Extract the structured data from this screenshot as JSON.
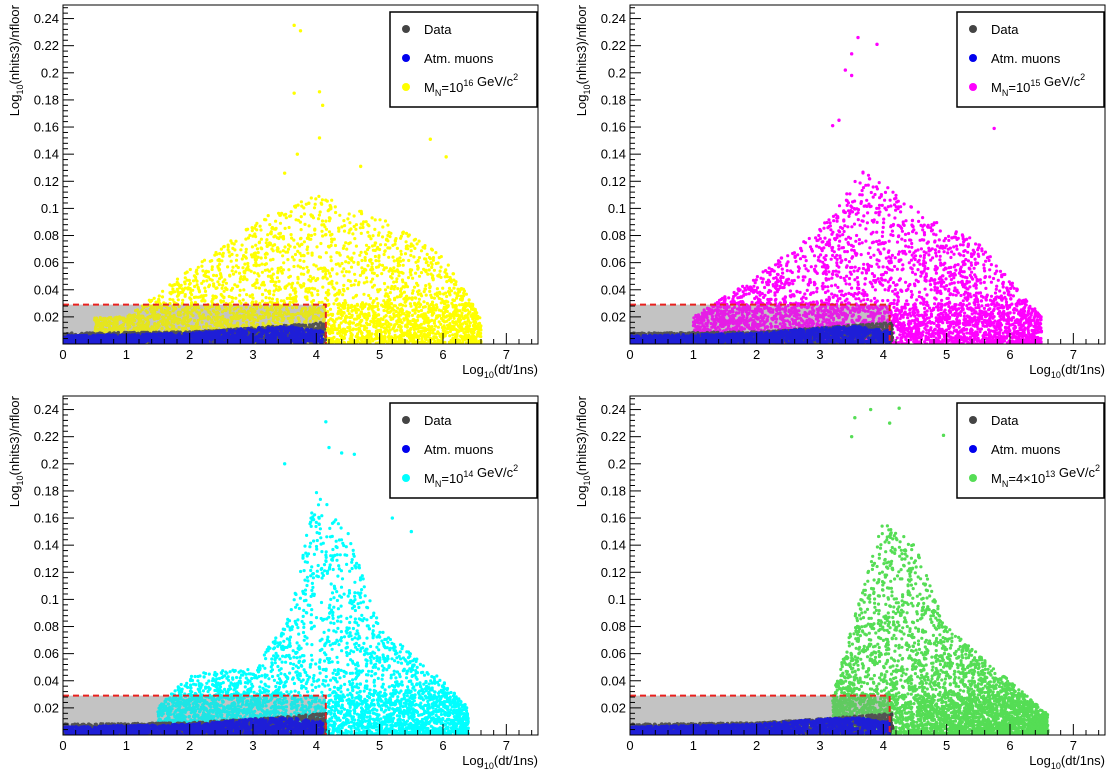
{
  "chart_data": [
    {
      "type": "scatter",
      "xlabel": "Log10(dt/1ns)",
      "ylabel": "Log10(nhits3)/nfloor",
      "xlim": [
        0,
        7.5
      ],
      "ylim": [
        0,
        0.25
      ],
      "xticks": [
        0,
        1,
        2,
        3,
        4,
        5,
        6,
        7
      ],
      "yticks": [
        0.02,
        0.04,
        0.06,
        0.08,
        0.1,
        0.12,
        0.14,
        0.16,
        0.18,
        0.2,
        0.22,
        0.24
      ],
      "xtick_labels": [
        "0",
        "1",
        "2",
        "3",
        "4",
        "5",
        "6",
        "7"
      ],
      "ytick_labels": [
        "0.02",
        "0.04",
        "0.06",
        "0.08",
        "0.1",
        "0.12",
        "0.14",
        "0.16",
        "0.18",
        "0.2",
        "0.22",
        "0.24"
      ],
      "cut_box": {
        "x": [
          0,
          4.15
        ],
        "y": [
          0,
          0.029
        ]
      },
      "legend_position": "top-right",
      "legend": [
        {
          "label": "Data",
          "color": "#444444"
        },
        {
          "label": "Atm. muons",
          "color": "#0000ee"
        },
        {
          "label": "M_N=10^16 GeV/c^2",
          "color": "#ffff00"
        }
      ],
      "series": [
        {
          "name": "Data",
          "color": "#444444",
          "region": {
            "x": [
              0,
              4.15
            ],
            "y_max_at_x": [
              [
                0,
                0.008
              ],
              [
                2,
                0.009
              ],
              [
                3,
                0.012
              ],
              [
                3.6,
                0.014
              ],
              [
                4.15,
                0.016
              ]
            ]
          }
        },
        {
          "name": "Atm. muons",
          "color": "#0000ee",
          "region": {
            "x": [
              0,
              4.1
            ],
            "y_max_at_x": [
              [
                0,
                0.006
              ],
              [
                2,
                0.008
              ],
              [
                3,
                0.012
              ],
              [
                3.6,
                0.013
              ],
              [
                4.0,
                0.01
              ]
            ]
          }
        },
        {
          "name": "M_N=10^16 GeV/c^2",
          "color": "#ffff00",
          "region": {
            "x": [
              0.5,
              6.6
            ],
            "y_max_at_x": [
              [
                1,
                0.02
              ],
              [
                2,
                0.055
              ],
              [
                3,
                0.09
              ],
              [
                4,
                0.11
              ],
              [
                5,
                0.095
              ],
              [
                6,
                0.065
              ],
              [
                6.6,
                0.02
              ]
            ]
          },
          "outliers": [
            [
              3.65,
              0.235
            ],
            [
              3.75,
              0.231
            ],
            [
              3.65,
              0.185
            ],
            [
              4.05,
              0.186
            ],
            [
              4.1,
              0.176
            ],
            [
              4.05,
              0.152
            ],
            [
              5.8,
              0.151
            ],
            [
              6.05,
              0.138
            ],
            [
              4.7,
              0.131
            ],
            [
              3.7,
              0.14
            ],
            [
              3.5,
              0.126
            ]
          ]
        }
      ]
    },
    {
      "type": "scatter",
      "xlabel": "Log10(dt/1ns)",
      "ylabel": "Log10(nhits3)/nfloor",
      "xlim": [
        0,
        7.5
      ],
      "ylim": [
        0,
        0.25
      ],
      "xticks": [
        0,
        1,
        2,
        3,
        4,
        5,
        6,
        7
      ],
      "yticks": [
        0.02,
        0.04,
        0.06,
        0.08,
        0.1,
        0.12,
        0.14,
        0.16,
        0.18,
        0.2,
        0.22,
        0.24
      ],
      "xtick_labels": [
        "0",
        "1",
        "2",
        "3",
        "4",
        "5",
        "6",
        "7"
      ],
      "ytick_labels": [
        "0.02",
        "0.04",
        "0.06",
        "0.08",
        "0.1",
        "0.12",
        "0.14",
        "0.16",
        "0.18",
        "0.2",
        "0.22",
        "0.24"
      ],
      "cut_box": {
        "x": [
          0,
          4.1
        ],
        "y": [
          0,
          0.029
        ]
      },
      "legend_position": "top-right",
      "legend": [
        {
          "label": "Data",
          "color": "#444444"
        },
        {
          "label": "Atm. muons",
          "color": "#0000ee"
        },
        {
          "label": "M_N=10^15 GeV/c^2",
          "color": "#ff00ff"
        }
      ],
      "series": [
        {
          "name": "Data",
          "color": "#444444",
          "region": {
            "x": [
              0,
              4.15
            ],
            "y_max_at_x": [
              [
                0,
                0.008
              ],
              [
                2,
                0.009
              ],
              [
                3,
                0.012
              ],
              [
                3.6,
                0.014
              ],
              [
                4.15,
                0.016
              ]
            ]
          }
        },
        {
          "name": "Atm. muons",
          "color": "#0000ee",
          "region": {
            "x": [
              0,
              4.1
            ],
            "y_max_at_x": [
              [
                0,
                0.006
              ],
              [
                2,
                0.008
              ],
              [
                3,
                0.012
              ],
              [
                3.6,
                0.013
              ],
              [
                4.0,
                0.01
              ]
            ]
          }
        },
        {
          "name": "M_N=10^15 GeV/c^2",
          "color": "#ff00ff",
          "region": {
            "x": [
              1.0,
              6.5
            ],
            "y_max_at_x": [
              [
                1,
                0.02
              ],
              [
                2,
                0.05
              ],
              [
                3,
                0.085
              ],
              [
                3.7,
                0.13
              ],
              [
                4.5,
                0.1
              ],
              [
                5.5,
                0.075
              ],
              [
                6.5,
                0.02
              ]
            ]
          },
          "outliers": [
            [
              3.6,
              0.226
            ],
            [
              3.9,
              0.221
            ],
            [
              3.5,
              0.214
            ],
            [
              3.4,
              0.202
            ],
            [
              3.5,
              0.198
            ],
            [
              5.75,
              0.159
            ],
            [
              3.3,
              0.165
            ],
            [
              3.2,
              0.161
            ]
          ]
        }
      ]
    },
    {
      "type": "scatter",
      "xlabel": "Log10(dt/1ns)",
      "ylabel": "Log10(nhits3)/nfloor",
      "xlim": [
        0,
        7.5
      ],
      "ylim": [
        0,
        0.25
      ],
      "xticks": [
        0,
        1,
        2,
        3,
        4,
        5,
        6,
        7
      ],
      "yticks": [
        0.02,
        0.04,
        0.06,
        0.08,
        0.1,
        0.12,
        0.14,
        0.16,
        0.18,
        0.2,
        0.22,
        0.24
      ],
      "xtick_labels": [
        "0",
        "1",
        "2",
        "3",
        "4",
        "5",
        "6",
        "7"
      ],
      "ytick_labels": [
        "0.02",
        "0.04",
        "0.06",
        "0.08",
        "0.1",
        "0.12",
        "0.14",
        "0.16",
        "0.18",
        "0.2",
        "0.22",
        "0.24"
      ],
      "cut_box": {
        "x": [
          0,
          4.15
        ],
        "y": [
          0,
          0.029
        ]
      },
      "legend_position": "top-right",
      "legend": [
        {
          "label": "Data",
          "color": "#444444"
        },
        {
          "label": "Atm. muons",
          "color": "#0000ee"
        },
        {
          "label": "M_N=10^14 GeV/c^2",
          "color": "#00ffff"
        }
      ],
      "series": [
        {
          "name": "Data",
          "color": "#444444",
          "region": {
            "x": [
              0,
              4.15
            ],
            "y_max_at_x": [
              [
                0,
                0.008
              ],
              [
                2,
                0.009
              ],
              [
                3,
                0.012
              ],
              [
                3.6,
                0.014
              ],
              [
                4.15,
                0.016
              ]
            ]
          }
        },
        {
          "name": "Atm. muons",
          "color": "#0000ee",
          "region": {
            "x": [
              0,
              4.1
            ],
            "y_max_at_x": [
              [
                0,
                0.006
              ],
              [
                2,
                0.008
              ],
              [
                3,
                0.012
              ],
              [
                3.6,
                0.013
              ],
              [
                4.0,
                0.01
              ]
            ]
          }
        },
        {
          "name": "M_N=10^14 GeV/c^2",
          "color": "#00ffff",
          "region": {
            "x": [
              1.5,
              6.4
            ],
            "y_max_at_x": [
              [
                1.5,
                0.02
              ],
              [
                2,
                0.045
              ],
              [
                3,
                0.05
              ],
              [
                3.5,
                0.08
              ],
              [
                4,
                0.18
              ],
              [
                4.5,
                0.15
              ],
              [
                5,
                0.08
              ],
              [
                6,
                0.04
              ],
              [
                6.4,
                0.02
              ]
            ]
          },
          "outliers": [
            [
              4.15,
              0.231
            ],
            [
              4.2,
              0.212
            ],
            [
              4.4,
              0.208
            ],
            [
              4.6,
              0.207
            ],
            [
              3.5,
              0.2
            ],
            [
              5.2,
              0.16
            ],
            [
              5.5,
              0.15
            ]
          ]
        }
      ]
    },
    {
      "type": "scatter",
      "xlabel": "Log10(dt/1ns)",
      "ylabel": "Log10(nhits3)/nfloor",
      "xlim": [
        0,
        7.5
      ],
      "ylim": [
        0,
        0.25
      ],
      "xticks": [
        0,
        1,
        2,
        3,
        4,
        5,
        6,
        7
      ],
      "yticks": [
        0.02,
        0.04,
        0.06,
        0.08,
        0.1,
        0.12,
        0.14,
        0.16,
        0.18,
        0.2,
        0.22,
        0.24
      ],
      "xtick_labels": [
        "0",
        "1",
        "2",
        "3",
        "4",
        "5",
        "6",
        "7"
      ],
      "ytick_labels": [
        "0.02",
        "0.04",
        "0.06",
        "0.08",
        "0.1",
        "0.12",
        "0.14",
        "0.16",
        "0.18",
        "0.2",
        "0.22",
        "0.24"
      ],
      "cut_box": {
        "x": [
          0,
          4.1
        ],
        "y": [
          0,
          0.029
        ]
      },
      "legend_position": "top-right",
      "legend": [
        {
          "label": "Data",
          "color": "#444444"
        },
        {
          "label": "Atm. muons",
          "color": "#0000ee"
        },
        {
          "label": "M_N=4×10^13 GeV/c^2",
          "color": "#55dd55"
        }
      ],
      "series": [
        {
          "name": "Data",
          "color": "#444444",
          "region": {
            "x": [
              0,
              4.15
            ],
            "y_max_at_x": [
              [
                0,
                0.008
              ],
              [
                2,
                0.009
              ],
              [
                3,
                0.012
              ],
              [
                3.6,
                0.014
              ],
              [
                4.15,
                0.016
              ]
            ]
          }
        },
        {
          "name": "Atm. muons",
          "color": "#0000ee",
          "region": {
            "x": [
              0,
              4.1
            ],
            "y_max_at_x": [
              [
                0,
                0.006
              ],
              [
                2,
                0.008
              ],
              [
                3,
                0.012
              ],
              [
                3.6,
                0.013
              ],
              [
                4.0,
                0.01
              ]
            ]
          }
        },
        {
          "name": "M_N=4×10^13 GeV/c^2",
          "color": "#55dd55",
          "region": {
            "x": [
              3.2,
              6.6
            ],
            "y_max_at_x": [
              [
                3.2,
                0.03
              ],
              [
                3.5,
                0.08
              ],
              [
                4,
                0.16
              ],
              [
                4.5,
                0.14
              ],
              [
                5,
                0.08
              ],
              [
                6,
                0.04
              ],
              [
                6.6,
                0.015
              ]
            ]
          },
          "outliers": [
            [
              3.55,
              0.234
            ],
            [
              3.8,
              0.24
            ],
            [
              4.25,
              0.241
            ],
            [
              4.95,
              0.221
            ],
            [
              5.2,
              0.212
            ],
            [
              4.1,
              0.23
            ],
            [
              3.5,
              0.22
            ]
          ]
        }
      ]
    }
  ]
}
